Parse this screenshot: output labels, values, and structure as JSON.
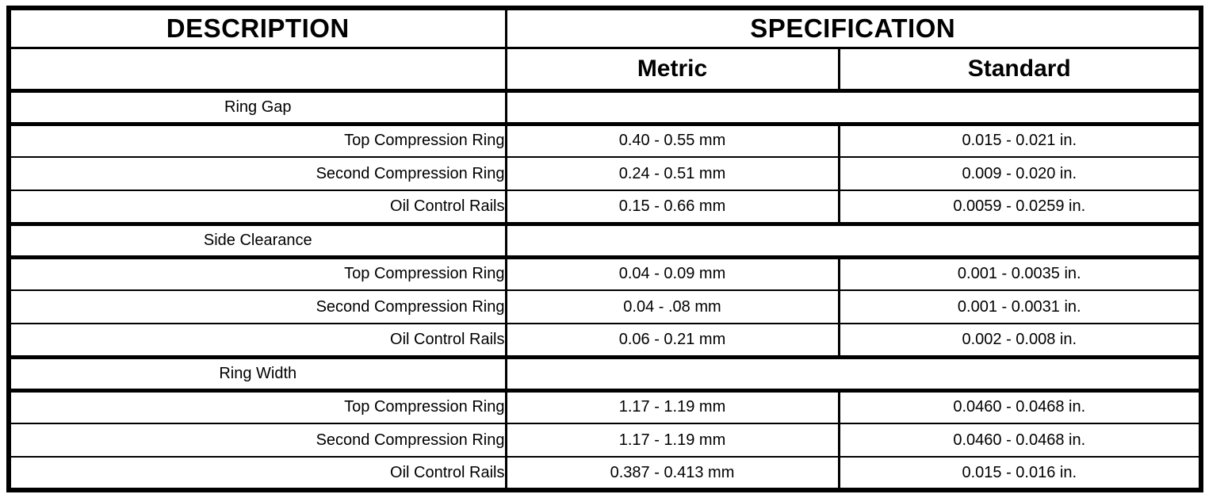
{
  "table": {
    "header": {
      "description": "DESCRIPTION",
      "specification": "SPECIFICATION",
      "metric": "Metric",
      "standard": "Standard"
    },
    "sections": [
      {
        "title": "Ring Gap",
        "rows": [
          {
            "label": "Top Compression Ring",
            "metric": "0.40 - 0.55 mm",
            "standard": "0.015 - 0.021 in."
          },
          {
            "label": "Second Compression Ring",
            "metric": "0.24 - 0.51 mm",
            "standard": "0.009 - 0.020 in."
          },
          {
            "label": "Oil Control Rails",
            "metric": "0.15 - 0.66 mm",
            "standard": "0.0059 - 0.0259 in."
          }
        ]
      },
      {
        "title": "Side Clearance",
        "rows": [
          {
            "label": "Top Compression Ring",
            "metric": "0.04 - 0.09 mm",
            "standard": "0.001 - 0.0035 in."
          },
          {
            "label": "Second Compression Ring",
            "metric": "0.04 - .08 mm",
            "standard": "0.001 - 0.0031 in."
          },
          {
            "label": "Oil Control Rails",
            "metric": "0.06 - 0.21 mm",
            "standard": "0.002 - 0.008 in."
          }
        ]
      },
      {
        "title": "Ring Width",
        "rows": [
          {
            "label": "Top Compression Ring",
            "metric": "1.17 - 1.19 mm",
            "standard": "0.0460 - 0.0468 in."
          },
          {
            "label": "Second Compression Ring",
            "metric": "1.17 - 1.19 mm",
            "standard": "0.0460 - 0.0468 in."
          },
          {
            "label": "Oil Control Rails",
            "metric": "0.387 - 0.413 mm",
            "standard": "0.015 - 0.016 in."
          }
        ]
      }
    ]
  }
}
